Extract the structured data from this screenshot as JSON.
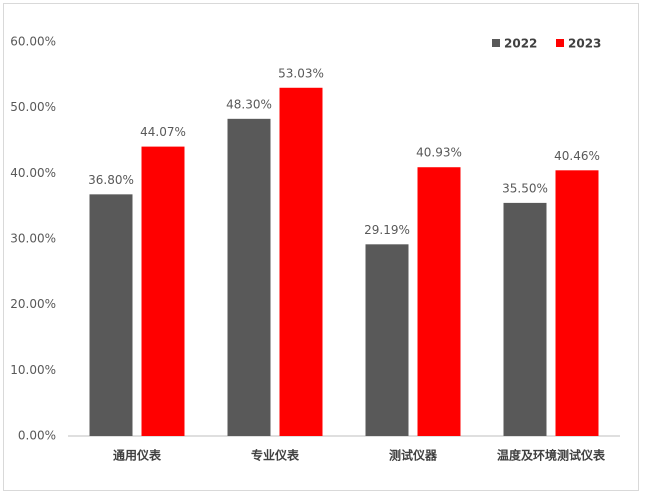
{
  "chart_data": {
    "type": "bar",
    "categories": [
      "通用仪表",
      "专业仪表",
      "测试仪器",
      "温度及环境测试仪表"
    ],
    "series": [
      {
        "name": "2022",
        "color": "#595959",
        "values": [
          36.8,
          48.3,
          29.19,
          35.5
        ],
        "value_labels": [
          "36.80%",
          "48.30%",
          "29.19%",
          "35.50%"
        ]
      },
      {
        "name": "2023",
        "color": "#ff0000",
        "values": [
          44.07,
          53.03,
          40.93,
          40.46
        ],
        "value_labels": [
          "44.07%",
          "53.03%",
          "40.93%",
          "40.46%"
        ]
      }
    ],
    "ylim": [
      0,
      60
    ],
    "yticks": [
      {
        "value": 0,
        "label": "0.00%"
      },
      {
        "value": 10,
        "label": "10.00%"
      },
      {
        "value": 20,
        "label": "20.00%"
      },
      {
        "value": 30,
        "label": "30.00%"
      },
      {
        "value": 40,
        "label": "40.00%"
      },
      {
        "value": 50,
        "label": "50.00%"
      },
      {
        "value": 60,
        "label": "60.00%"
      }
    ],
    "grid": false,
    "legend": "top-right"
  }
}
